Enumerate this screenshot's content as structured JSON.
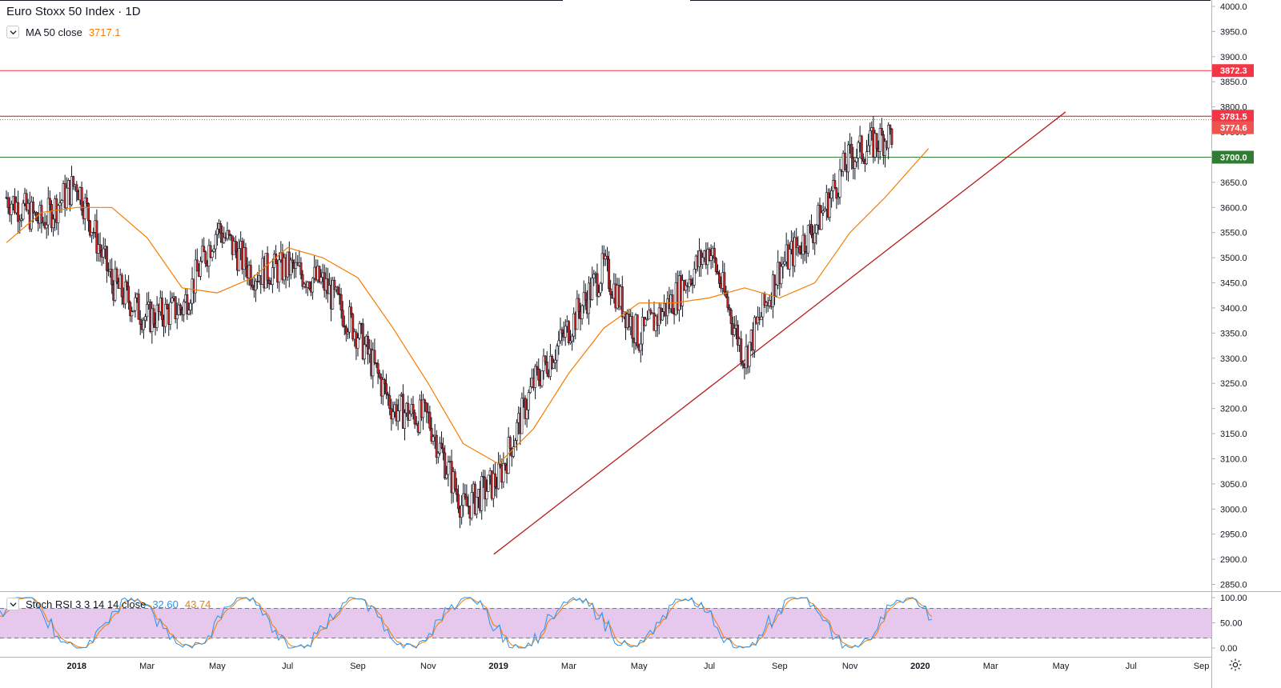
{
  "header": {
    "title": "Euro Stoxx 50 Index · 1D",
    "indicator_label": "MA 50 close",
    "indicator_value": "3717.1",
    "indicator_color": "#f57c00"
  },
  "oscillator": {
    "label": "Stoch RSI 3 3 14 14 close",
    "k_value": "32.60",
    "d_value": "43.74",
    "k_color": "#2196f3",
    "d_color": "#f57c00",
    "band_color": "#e1bee7",
    "axis_ticks": [
      "100.00",
      "50.00",
      "0.00"
    ]
  },
  "price_axis": {
    "ticks": [
      "4000.0",
      "3950.0",
      "3900.0",
      "3850.0",
      "3800.0",
      "3750.0",
      "3700.0",
      "3650.0",
      "3600.0",
      "3550.0",
      "3500.0",
      "3450.0",
      "3400.0",
      "3350.0",
      "3300.0",
      "3250.0",
      "3200.0",
      "3150.0",
      "3100.0",
      "3050.0",
      "3000.0",
      "2950.0",
      "2900.0",
      "2850.0"
    ],
    "tags": [
      {
        "label": "3872.3",
        "value": 3872.3,
        "color": "#f23645"
      },
      {
        "label": "3781.5",
        "value": 3781.5,
        "color": "#f23645"
      },
      {
        "label": "3774.6",
        "value": 3774.6,
        "color": "#ef5350"
      },
      {
        "label": "3700.0",
        "value": 3700.0,
        "color": "#2e7d32"
      }
    ]
  },
  "time_axis": {
    "labels": [
      "2018",
      "Mar",
      "May",
      "Jul",
      "Sep",
      "Nov",
      "2019",
      "Mar",
      "May",
      "Jul",
      "Sep",
      "Nov",
      "2020",
      "Mar",
      "May",
      "Jul",
      "Sep"
    ],
    "bold": [
      "2018",
      "2019",
      "2020"
    ]
  },
  "chart_data": {
    "type": "line",
    "title": "Euro Stoxx 50 Index · 1D",
    "xlabel": "",
    "ylabel": "",
    "ylim": [
      2840,
      4000
    ],
    "x": [
      "2017-11",
      "2017-12",
      "2018-01",
      "2018-02",
      "2018-03",
      "2018-04",
      "2018-05",
      "2018-06",
      "2018-07",
      "2018-08",
      "2018-09",
      "2018-10",
      "2018-11",
      "2018-12",
      "2019-01",
      "2019-02",
      "2019-03",
      "2019-04",
      "2019-05",
      "2019-06",
      "2019-07",
      "2019-08",
      "2019-09",
      "2019-10",
      "2019-11",
      "2019-12",
      "2020-01"
    ],
    "series": [
      {
        "name": "close",
        "values": [
          3620,
          3570,
          3650,
          3450,
          3380,
          3400,
          3560,
          3470,
          3480,
          3450,
          3350,
          3200,
          3180,
          3000,
          3060,
          3250,
          3360,
          3480,
          3340,
          3420,
          3520,
          3300,
          3480,
          3560,
          3700,
          3740,
          3780
        ]
      },
      {
        "name": "MA 50 close",
        "values": [
          3530,
          3590,
          3600,
          3600,
          3540,
          3440,
          3430,
          3460,
          3520,
          3500,
          3460,
          3360,
          3250,
          3130,
          3090,
          3160,
          3270,
          3360,
          3410,
          3410,
          3420,
          3440,
          3420,
          3450,
          3550,
          3620,
          3717
        ]
      }
    ],
    "horizontal_levels": [
      3872.3,
      3781.5,
      3700.0
    ],
    "trendline": {
      "from": {
        "x": "2018-12-27",
        "y": 2910
      },
      "to": {
        "x": "2020-05-05",
        "y": 3790
      }
    },
    "oscillator_ylim": [
      0,
      100
    ],
    "oscillator_bands": [
      80,
      20
    ],
    "grid": false
  }
}
